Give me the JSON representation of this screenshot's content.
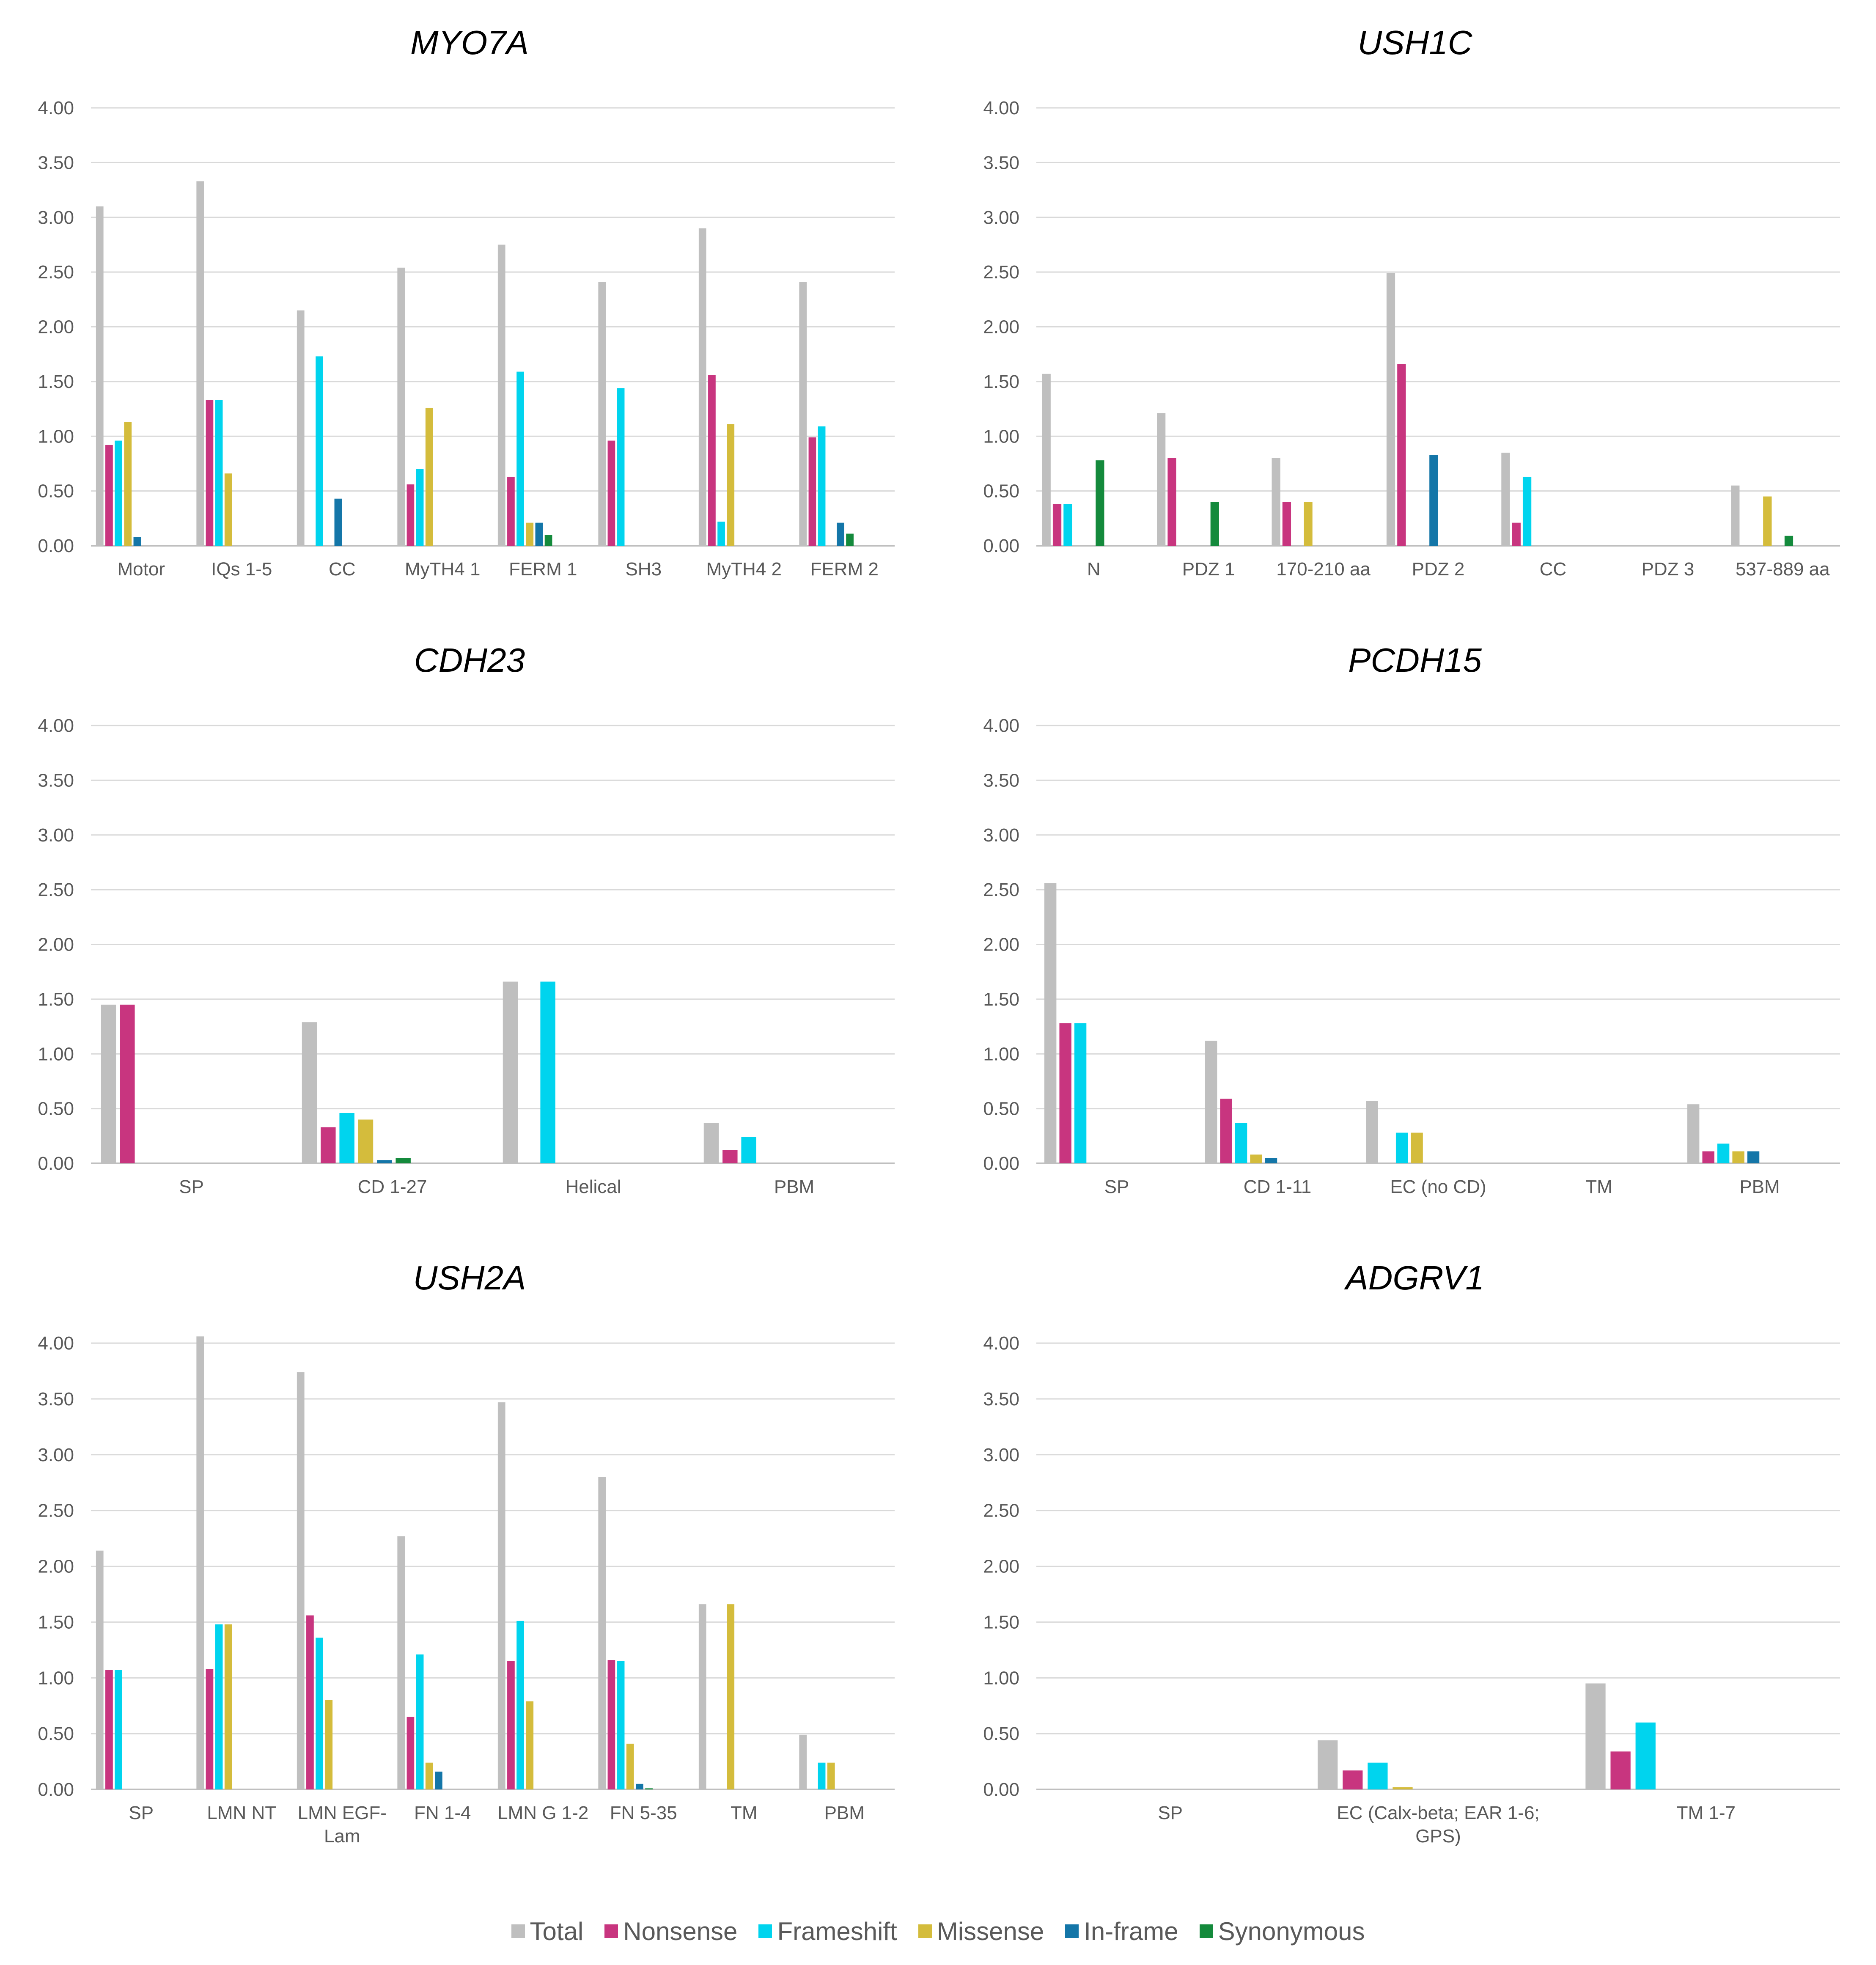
{
  "legend": [
    {
      "name": "Total",
      "color": "#BFBFBF"
    },
    {
      "name": "Nonsense",
      "color": "#C8357F"
    },
    {
      "name": "Frameshift",
      "color": "#00D4EE"
    },
    {
      "name": "Missense",
      "color": "#D4BC3C"
    },
    {
      "name": "In-frame",
      "color": "#1476A8"
    },
    {
      "name": "Synonymous",
      "color": "#148A3C"
    }
  ],
  "chart_data": [
    {
      "type": "bar",
      "title": "MYO7A",
      "ylim": [
        0,
        4
      ],
      "yticks": [
        "0.00",
        "0.50",
        "1.00",
        "1.50",
        "2.00",
        "2.50",
        "3.00",
        "3.50",
        "4.00"
      ],
      "categories": [
        "Motor",
        "IQs 1-5",
        "CC",
        "MyTH4 1",
        "FERM 1",
        "SH3",
        "MyTH4 2",
        "FERM 2"
      ],
      "series": [
        {
          "name": "Total",
          "values": [
            3.1,
            3.33,
            2.15,
            2.54,
            2.75,
            2.41,
            2.9,
            2.41
          ]
        },
        {
          "name": "Nonsense",
          "values": [
            0.92,
            1.33,
            0,
            0.56,
            0.63,
            0.96,
            1.56,
            0.99
          ]
        },
        {
          "name": "Frameshift",
          "values": [
            0.96,
            1.33,
            1.73,
            0.7,
            1.59,
            1.44,
            0.22,
            1.09
          ]
        },
        {
          "name": "Missense",
          "values": [
            1.13,
            0.66,
            0,
            1.26,
            0.21,
            0,
            1.11,
            0
          ]
        },
        {
          "name": "In-frame",
          "values": [
            0.08,
            0,
            0.43,
            0,
            0.21,
            0,
            0,
            0.21
          ]
        },
        {
          "name": "Synonymous",
          "values": [
            0,
            0,
            0,
            0,
            0.1,
            0,
            0,
            0.11
          ]
        }
      ]
    },
    {
      "type": "bar",
      "title": "USH1C",
      "ylim": [
        0,
        4
      ],
      "yticks": [
        "0.00",
        "0.50",
        "1.00",
        "1.50",
        "2.00",
        "2.50",
        "3.00",
        "3.50",
        "4.00"
      ],
      "categories": [
        "N",
        "PDZ 1",
        "170-210 aa",
        "PDZ 2",
        "CC",
        "PDZ 3",
        "537-889 aa"
      ],
      "series": [
        {
          "name": "Total",
          "values": [
            1.57,
            1.21,
            0.8,
            2.49,
            0.85,
            0,
            0.55
          ]
        },
        {
          "name": "Nonsense",
          "values": [
            0.38,
            0.8,
            0.4,
            1.66,
            0.21,
            0,
            0
          ]
        },
        {
          "name": "Frameshift",
          "values": [
            0.38,
            0,
            0,
            0,
            0.63,
            0,
            0
          ]
        },
        {
          "name": "Missense",
          "values": [
            0,
            0,
            0.4,
            0,
            0,
            0,
            0.45
          ]
        },
        {
          "name": "In-frame",
          "values": [
            0,
            0,
            0,
            0.83,
            0,
            0,
            0
          ]
        },
        {
          "name": "Synonymous",
          "values": [
            0.78,
            0.4,
            0,
            0,
            0,
            0,
            0.09
          ]
        }
      ]
    },
    {
      "type": "bar",
      "title": "CDH23",
      "ylim": [
        0,
        4
      ],
      "yticks": [
        "0.00",
        "0.50",
        "1.00",
        "1.50",
        "2.00",
        "2.50",
        "3.00",
        "3.50",
        "4.00"
      ],
      "categories": [
        "SP",
        "CD 1-27",
        "Helical",
        "PBM"
      ],
      "series": [
        {
          "name": "Total",
          "values": [
            1.45,
            1.29,
            1.66,
            0.37
          ]
        },
        {
          "name": "Nonsense",
          "values": [
            1.45,
            0.33,
            0,
            0.12
          ]
        },
        {
          "name": "Frameshift",
          "values": [
            0,
            0.46,
            1.66,
            0.24
          ]
        },
        {
          "name": "Missense",
          "values": [
            0,
            0.4,
            0,
            0
          ]
        },
        {
          "name": "In-frame",
          "values": [
            0,
            0.03,
            0,
            0
          ]
        },
        {
          "name": "Synonymous",
          "values": [
            0,
            0.05,
            0,
            0
          ]
        }
      ]
    },
    {
      "type": "bar",
      "title": "PCDH15",
      "ylim": [
        0,
        4
      ],
      "yticks": [
        "0.00",
        "0.50",
        "1.00",
        "1.50",
        "2.00",
        "2.50",
        "3.00",
        "3.50",
        "4.00"
      ],
      "categories": [
        "SP",
        "CD 1-11",
        "EC (no CD)",
        "TM",
        "PBM"
      ],
      "series": [
        {
          "name": "Total",
          "values": [
            2.56,
            1.12,
            0.57,
            0,
            0.54
          ]
        },
        {
          "name": "Nonsense",
          "values": [
            1.28,
            0.59,
            0,
            0,
            0.11
          ]
        },
        {
          "name": "Frameshift",
          "values": [
            1.28,
            0.37,
            0.28,
            0,
            0.18
          ]
        },
        {
          "name": "Missense",
          "values": [
            0,
            0.08,
            0.28,
            0,
            0.11
          ]
        },
        {
          "name": "In-frame",
          "values": [
            0,
            0.05,
            0,
            0,
            0.11
          ]
        },
        {
          "name": "Synonymous",
          "values": [
            0,
            0,
            0,
            0,
            0
          ]
        }
      ]
    },
    {
      "type": "bar",
      "title": "USH2A",
      "ylim": [
        0,
        4
      ],
      "yticks": [
        "0.00",
        "0.50",
        "1.00",
        "1.50",
        "2.00",
        "2.50",
        "3.00",
        "3.50",
        "4.00"
      ],
      "categories": [
        [
          "SP"
        ],
        [
          "LMN NT"
        ],
        [
          "LMN EGF-",
          "Lam"
        ],
        [
          "FN 1-4"
        ],
        [
          "LMN G 1-2"
        ],
        [
          "FN 5-35"
        ],
        [
          "TM"
        ],
        [
          "PBM"
        ]
      ],
      "series": [
        {
          "name": "Total",
          "values": [
            2.14,
            4.06,
            3.74,
            2.27,
            3.47,
            2.8,
            1.66,
            0.49
          ]
        },
        {
          "name": "Nonsense",
          "values": [
            1.07,
            1.08,
            1.56,
            0.65,
            1.15,
            1.16,
            0,
            0
          ]
        },
        {
          "name": "Frameshift",
          "values": [
            1.07,
            1.48,
            1.36,
            1.21,
            1.51,
            1.15,
            0,
            0.24
          ]
        },
        {
          "name": "Missense",
          "values": [
            0,
            1.48,
            0.8,
            0.24,
            0.79,
            0.41,
            1.66,
            0.24
          ]
        },
        {
          "name": "In-frame",
          "values": [
            0,
            0,
            0,
            0.16,
            0,
            0.05,
            0,
            0
          ]
        },
        {
          "name": "Synonymous",
          "values": [
            0,
            0,
            0,
            0,
            0,
            0.01,
            0,
            0
          ]
        }
      ]
    },
    {
      "type": "bar",
      "title": "ADGRV1",
      "ylim": [
        0,
        4
      ],
      "yticks": [
        "0.00",
        "0.50",
        "1.00",
        "1.50",
        "2.00",
        "2.50",
        "3.00",
        "3.50",
        "4.00"
      ],
      "categories": [
        [
          "SP"
        ],
        [
          "EC (Calx-beta; EAR 1-6;",
          "GPS)"
        ],
        [
          "TM 1-7"
        ]
      ],
      "series": [
        {
          "name": "Total",
          "values": [
            0,
            0.44,
            0.95
          ]
        },
        {
          "name": "Nonsense",
          "values": [
            0,
            0.17,
            0.34
          ]
        },
        {
          "name": "Frameshift",
          "values": [
            0,
            0.24,
            0.6
          ]
        },
        {
          "name": "Missense",
          "values": [
            0,
            0.02,
            0
          ]
        },
        {
          "name": "In-frame",
          "values": [
            0,
            0,
            0
          ]
        },
        {
          "name": "Synonymous",
          "values": [
            0,
            0,
            0
          ]
        }
      ]
    }
  ]
}
